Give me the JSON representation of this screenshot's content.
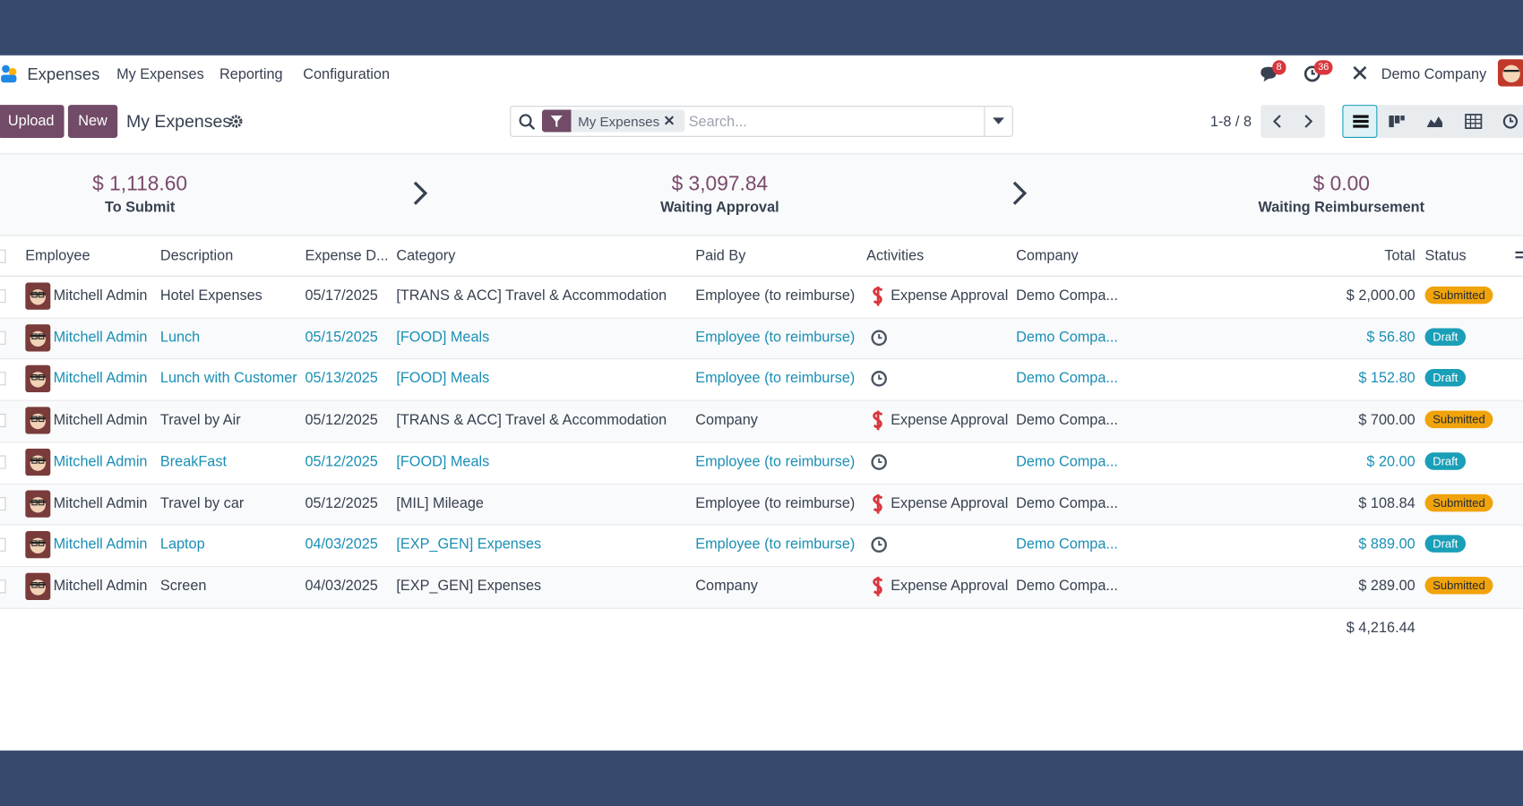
{
  "navbar": {
    "app": "Expenses",
    "menu": [
      "My Expenses",
      "Reporting",
      "Configuration"
    ],
    "message_count": "8",
    "activity_count": "36",
    "company": "Demo Company"
  },
  "toolbar": {
    "buttons": [
      "Upload",
      "New"
    ],
    "breadcrumb": "My Expenses",
    "search_facet": "My Expenses",
    "search_placeholder": "Search...",
    "pager": "1-8 / 8"
  },
  "summary": [
    {
      "amount": "$ 1,118.60",
      "label": "To Submit"
    },
    {
      "amount": "$ 3,097.84",
      "label": "Waiting Approval"
    },
    {
      "amount": "$ 0.00",
      "label": "Waiting Reimbursement"
    }
  ],
  "table": {
    "columns": [
      "Employee",
      "Description",
      "Expense D...",
      "Category",
      "Paid By",
      "Activities",
      "Company",
      "Total",
      "Status"
    ],
    "rows": [
      {
        "employee": "Mitchell Admin",
        "description": "Hotel Expenses",
        "date": "05/17/2025",
        "category": "[TRANS & ACC] Travel & Accommodation",
        "paid_by": "Employee (to reimburse)",
        "activity": "Expense Approval",
        "company": "Demo Compa...",
        "total": "$ 2,000.00",
        "status": "Submitted",
        "color": "#374151",
        "status_color": "#f0a30a"
      },
      {
        "employee": "Mitchell Admin",
        "description": "Lunch",
        "date": "05/15/2025",
        "category": "[FOOD] Meals",
        "paid_by": "Employee (to reimburse)",
        "activity": null,
        "company": "Demo Compa...",
        "total": "$ 56.80",
        "status": "Draft",
        "color": "#1a8fb5",
        "status_color": "#1a9fb8"
      },
      {
        "employee": "Mitchell Admin",
        "description": "Lunch with Customer",
        "date": "05/13/2025",
        "category": "[FOOD] Meals",
        "paid_by": "Employee (to reimburse)",
        "activity": null,
        "company": "Demo Compa...",
        "total": "$ 152.80",
        "status": "Draft",
        "color": "#1a8fb5",
        "status_color": "#1a9fb8"
      },
      {
        "employee": "Mitchell Admin",
        "description": "Travel by Air",
        "date": "05/12/2025",
        "category": "[TRANS & ACC] Travel & Accommodation",
        "paid_by": "Company",
        "activity": "Expense Approval",
        "company": "Demo Compa...",
        "total": "$ 700.00",
        "status": "Submitted",
        "color": "#374151",
        "status_color": "#f0a30a"
      },
      {
        "employee": "Mitchell Admin",
        "description": "BreakFast",
        "date": "05/12/2025",
        "category": "[FOOD] Meals",
        "paid_by": "Employee (to reimburse)",
        "activity": null,
        "company": "Demo Compa...",
        "total": "$ 20.00",
        "status": "Draft",
        "color": "#1a8fb5",
        "status_color": "#1a9fb8"
      },
      {
        "employee": "Mitchell Admin",
        "description": "Travel by car",
        "date": "05/12/2025",
        "category": "[MIL] Mileage",
        "paid_by": "Employee (to reimburse)",
        "activity": "Expense Approval",
        "company": "Demo Compa...",
        "total": "$ 108.84",
        "status": "Submitted",
        "color": "#374151",
        "status_color": "#f0a30a"
      },
      {
        "employee": "Mitchell Admin",
        "description": "Laptop",
        "date": "04/03/2025",
        "category": "[EXP_GEN] Expenses",
        "paid_by": "Employee (to reimburse)",
        "activity": null,
        "company": "Demo Compa...",
        "total": "$ 889.00",
        "status": "Draft",
        "color": "#1a8fb5",
        "status_color": "#1a9fb8"
      },
      {
        "employee": "Mitchell Admin",
        "description": "Screen",
        "date": "04/03/2025",
        "category": "[EXP_GEN] Expenses",
        "paid_by": "Company",
        "activity": "Expense Approval",
        "company": "Demo Compa...",
        "total": "$ 289.00",
        "status": "Submitted",
        "color": "#374151",
        "status_color": "#f0a30a"
      }
    ],
    "total": "$ 4,216.44"
  }
}
